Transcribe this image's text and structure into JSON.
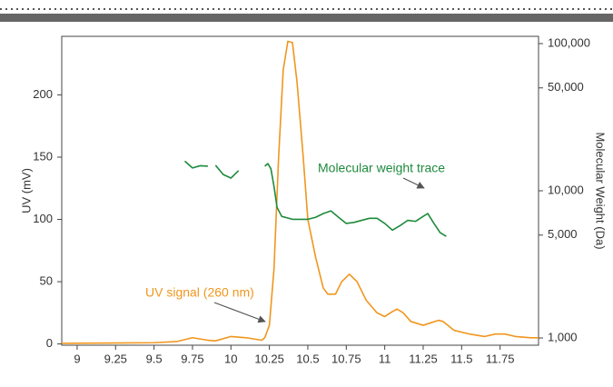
{
  "chart_data": {
    "type": "line",
    "xlim": [
      8.9,
      12.0
    ],
    "xticks": [
      9,
      9.25,
      9.5,
      9.75,
      10,
      10.25,
      10.5,
      10.75,
      11,
      11.25,
      11.5,
      11.75
    ],
    "ylim": [
      -1,
      247
    ],
    "yticks": [
      0,
      50,
      100,
      150,
      200
    ],
    "ylabel": "UV (mV)",
    "y2lim": [
      893,
      112000
    ],
    "y2log": true,
    "y2ticks": [
      {
        "value": 1000,
        "label": "1,000"
      },
      {
        "value": 5000,
        "label": "5,000"
      },
      {
        "value": 10000,
        "label": "10,000"
      },
      {
        "value": 50000,
        "label": "50,000"
      },
      {
        "value": 100000,
        "label": "100,000"
      }
    ],
    "y2label": "Molecular Weight (Da)",
    "series": [
      {
        "name": "UV signal (260 nm)",
        "color": "#f0961e",
        "x": [
          8.9,
          9.5,
          9.65,
          9.75,
          9.85,
          9.9,
          10.0,
          10.1,
          10.2,
          10.22,
          10.25,
          10.28,
          10.31,
          10.34,
          10.37,
          10.4,
          10.43,
          10.47,
          10.5,
          10.55,
          10.6,
          10.63,
          10.68,
          10.72,
          10.77,
          10.82,
          10.88,
          10.95,
          11.0,
          11.05,
          11.08,
          11.12,
          11.17,
          11.25,
          11.3,
          11.35,
          11.38,
          11.45,
          11.55,
          11.65,
          11.72,
          11.78,
          11.85,
          11.95,
          12.0
        ],
        "values": [
          0.5,
          1,
          2,
          5,
          3,
          2.5,
          6,
          5,
          3,
          5,
          15,
          60,
          150,
          220,
          243,
          242,
          210,
          150,
          100,
          70,
          45,
          40,
          40,
          50,
          56,
          50,
          35,
          25,
          22,
          26,
          28,
          25,
          18,
          15,
          17,
          19,
          18,
          11,
          8,
          6,
          8,
          8,
          6,
          5,
          5
        ]
      },
      {
        "name": "Molecular weight trace",
        "color": "#1e8a3c",
        "axis": "y2",
        "x": [
          9.7,
          9.75,
          9.8,
          9.85,
          9.875,
          9.9,
          9.95,
          10.0,
          10.05,
          10.15,
          10.22,
          10.24,
          10.26,
          10.28,
          10.3,
          10.33,
          10.4,
          10.5,
          10.55,
          10.6,
          10.65,
          10.7,
          10.75,
          10.8,
          10.9,
          10.95,
          11.0,
          11.05,
          11.1,
          11.15,
          11.2,
          11.25,
          11.28,
          11.32,
          11.36,
          11.4
        ],
        "values": [
          15900,
          14300,
          14800,
          14700,
          null,
          14900,
          12900,
          12200,
          13700,
          null,
          14700,
          15300,
          14100,
          10700,
          7700,
          6700,
          6400,
          6400,
          6600,
          7000,
          7300,
          6600,
          6000,
          6100,
          6500,
          6500,
          6000,
          5400,
          5800,
          6300,
          6200,
          6700,
          7000,
          6000,
          5200,
          4900
        ]
      }
    ],
    "annotations": [
      {
        "text": "UV signal (260 nm)"
      },
      {
        "text": "Molecular weight trace"
      }
    ]
  }
}
